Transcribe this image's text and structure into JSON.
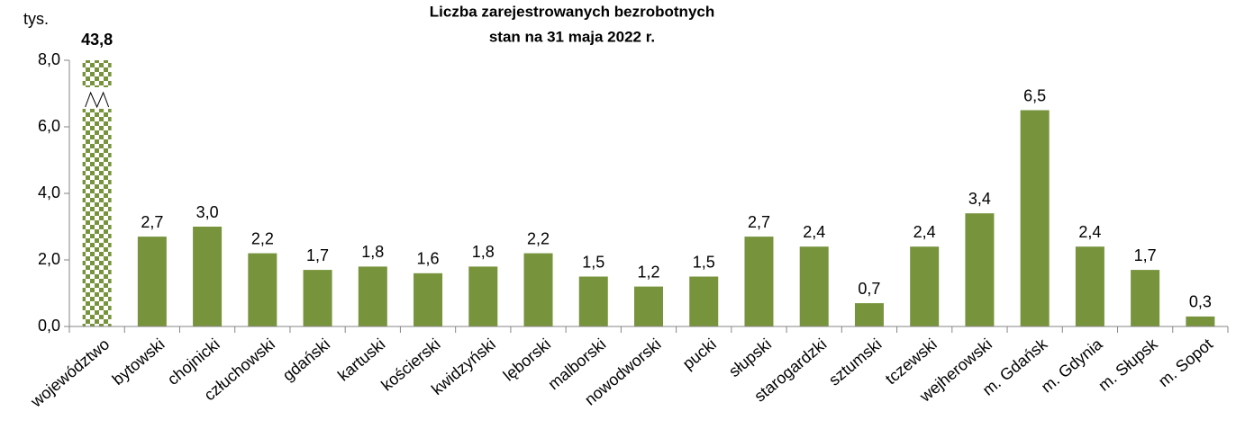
{
  "chart_data": {
    "type": "bar",
    "title": "Liczba zarejestrowanych bezrobotnych",
    "subtitle": "stan na 31 maja 2022 r.",
    "y_unit": "tys.",
    "categories": [
      "województwo",
      "bytowski",
      "chojnicki",
      "człuchowski",
      "gdański",
      "kartuski",
      "kościerski",
      "kwidzyński",
      "lęborski",
      "malborski",
      "nowodworski",
      "pucki",
      "słupski",
      "starogardzki",
      "sztumski",
      "tczewski",
      "wejherowski",
      "m. Gdańsk",
      "m. Gdynia",
      "m. Słupsk",
      "m. Sopot"
    ],
    "values": [
      43.8,
      2.7,
      3.0,
      2.2,
      1.7,
      1.8,
      1.6,
      1.8,
      2.2,
      1.5,
      1.2,
      1.5,
      2.7,
      2.4,
      0.7,
      2.4,
      3.4,
      6.5,
      2.4,
      1.7,
      0.3
    ],
    "value_labels": [
      "43,8",
      "2,7",
      "3,0",
      "2,2",
      "1,7",
      "1,8",
      "1,6",
      "1,8",
      "2,2",
      "1,5",
      "1,2",
      "1,5",
      "2,7",
      "2,4",
      "0,7",
      "2,4",
      "3,4",
      "6,5",
      "2,4",
      "1,7",
      "0,3"
    ],
    "color": "#77933c",
    "ylim": [
      0,
      8
    ],
    "yticks": [
      {
        "value": 0,
        "label": "0,0"
      },
      {
        "value": 2,
        "label": "2,0"
      },
      {
        "value": 4,
        "label": "4,0"
      },
      {
        "value": 6,
        "label": "6,0"
      },
      {
        "value": 8,
        "label": "8,0"
      }
    ],
    "grid": false
  }
}
